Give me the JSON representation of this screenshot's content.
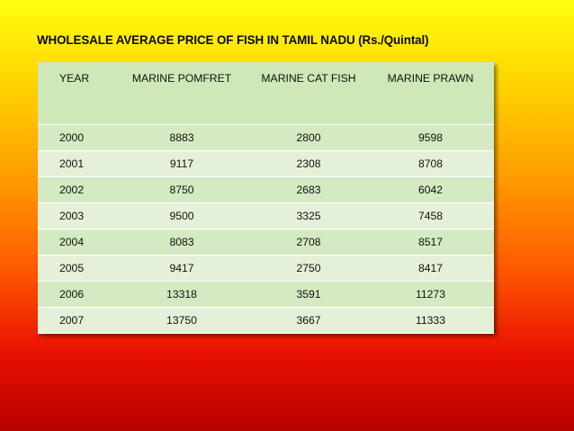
{
  "title": "WHOLESALE AVERAGE PRICE OF FISH IN TAMIL NADU (Rs./Quintal)",
  "table": {
    "headers": [
      "YEAR",
      "MARINE POMFRET",
      "MARINE CAT FISH",
      "MARINE PRAWN"
    ],
    "rows": [
      [
        "2000",
        "8883",
        "2800",
        "9598"
      ],
      [
        "2001",
        "9117",
        "2308",
        "8708"
      ],
      [
        "2002",
        "8750",
        "2683",
        "6042"
      ],
      [
        "2003",
        "9500",
        "3325",
        "7458"
      ],
      [
        "2004",
        "8083",
        "2708",
        "8517"
      ],
      [
        "2005",
        "9417",
        "2750",
        "8417"
      ],
      [
        "2006",
        "13318",
        "3591",
        "11273"
      ],
      [
        "2007",
        "13750",
        "3667",
        "11333"
      ]
    ]
  },
  "colors": {
    "background_top": "#ffff10",
    "background_bottom": "#b80000",
    "header_row": "#cfe8b8",
    "row_dark": "#d4eac2",
    "row_light": "#e4f1d8"
  }
}
